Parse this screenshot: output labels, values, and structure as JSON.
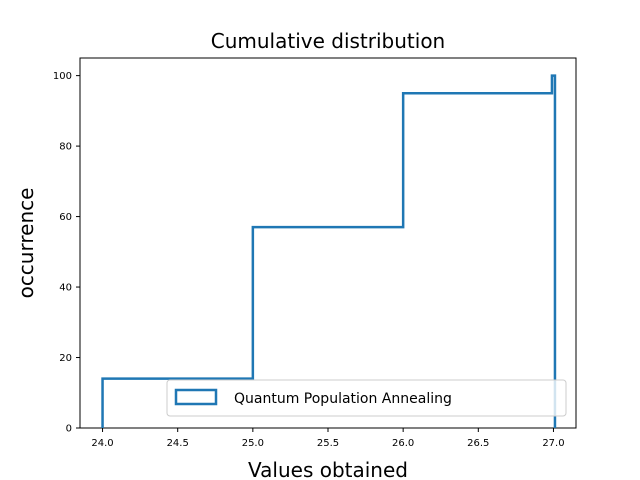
{
  "chart_data": {
    "type": "step",
    "title": "Cumulative distribution",
    "xlabel": "Values obtained",
    "ylabel": "occurrence",
    "xlim": [
      23.85,
      27.15
    ],
    "ylim": [
      0,
      105
    ],
    "xticks": [
      "24.0",
      "24.5",
      "25.0",
      "25.5",
      "26.0",
      "26.5",
      "27.0"
    ],
    "yticks": [
      "0",
      "20",
      "40",
      "60",
      "80",
      "100"
    ],
    "grid": false,
    "legend_position": "lower-right",
    "series": [
      {
        "name": "Quantum Population Annealing",
        "color": "#1f77b4",
        "steps": [
          {
            "x": 24.0,
            "y": 14
          },
          {
            "x": 25.0,
            "y": 57
          },
          {
            "x": 26.0,
            "y": 95
          },
          {
            "x": 26.99,
            "y": 100
          },
          {
            "x": 27.01,
            "y": 0
          }
        ]
      }
    ]
  }
}
